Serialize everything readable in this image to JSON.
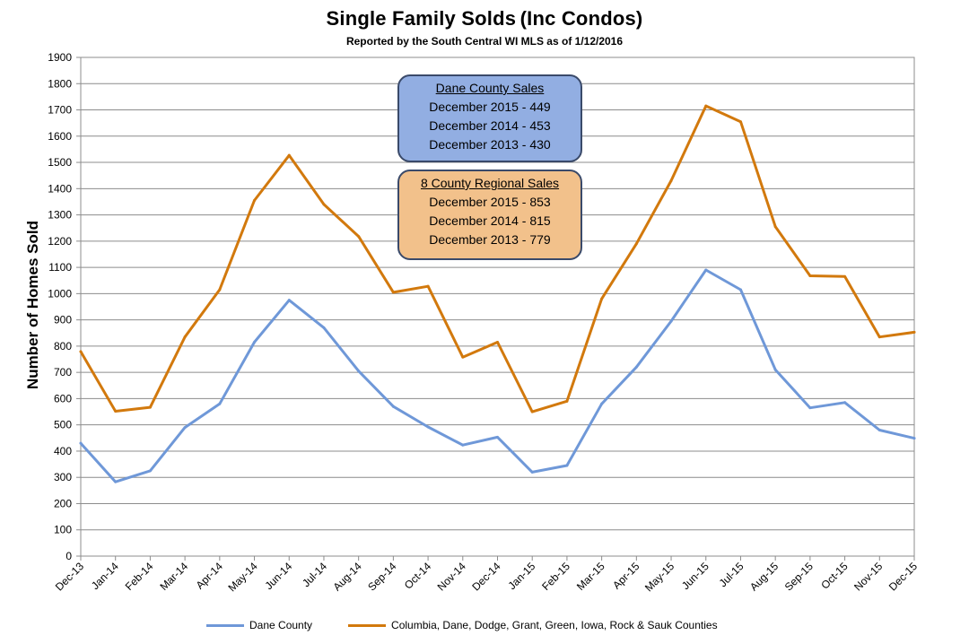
{
  "title": {
    "main": "Single Family Solds",
    "suffix": "(Inc Condos)",
    "subtitle": "Reported by the South Central WI MLS as of 1/12/2016"
  },
  "boxes": {
    "dane": {
      "title": "Dane  County Sales",
      "lines": [
        "December 2015 - 449",
        "December 2014 - 453",
        "December 2013 - 430"
      ]
    },
    "regional": {
      "title": "8 County  Regional Sales",
      "lines": [
        "December 2015  -  853",
        "December 2014  -  815",
        "December 2013  -  779"
      ]
    }
  },
  "legend": {
    "dane": "Dane County",
    "regional": "Columbia, Dane, Dodge, Grant, Green, Iowa, Rock & Sauk Counties"
  },
  "colors": {
    "dane": "#6f98d8",
    "regional": "#d2790d",
    "grid": "#8c8c8c",
    "dane_box": "#92aee2",
    "regional_box": "#f2c18b"
  },
  "chart_data": {
    "type": "line",
    "title": "Single Family Solds (Inc Condos)",
    "subtitle": "Reported by the South Central WI MLS as of 1/12/2016",
    "xlabel": "",
    "ylabel": "Number of Homes Sold",
    "ylim": [
      0,
      1900
    ],
    "ytick_step": 100,
    "grid": true,
    "legend_position": "bottom",
    "categories": [
      "Dec-13",
      "Jan-14",
      "Feb-14",
      "Mar-14",
      "Apr-14",
      "May-14",
      "Jun-14",
      "Jul-14",
      "Aug-14",
      "Sep-14",
      "Oct-14",
      "Nov-14",
      "Dec-14",
      "Jan-15",
      "Feb-15",
      "Mar-15",
      "Apr-15",
      "May-15",
      "Jun-15",
      "Jul-15",
      "Aug-15",
      "Sep-15",
      "Oct-15",
      "Nov-15",
      "Dec-15"
    ],
    "series": [
      {
        "name": "Dane County",
        "values": [
          430,
          283,
          325,
          490,
          580,
          815,
          975,
          870,
          705,
          570,
          492,
          423,
          453,
          320,
          345,
          580,
          720,
          895,
          1090,
          1015,
          710,
          565,
          585,
          480,
          449
        ]
      },
      {
        "name": "Columbia, Dane, Dodge, Grant, Green, Iowa, Rock & Sauk Counties",
        "values": [
          779,
          552,
          567,
          835,
          1015,
          1355,
          1527,
          1340,
          1218,
          1005,
          1028,
          758,
          815,
          550,
          590,
          980,
          1190,
          1430,
          1715,
          1655,
          1255,
          1068,
          1065,
          835,
          853
        ]
      }
    ]
  }
}
